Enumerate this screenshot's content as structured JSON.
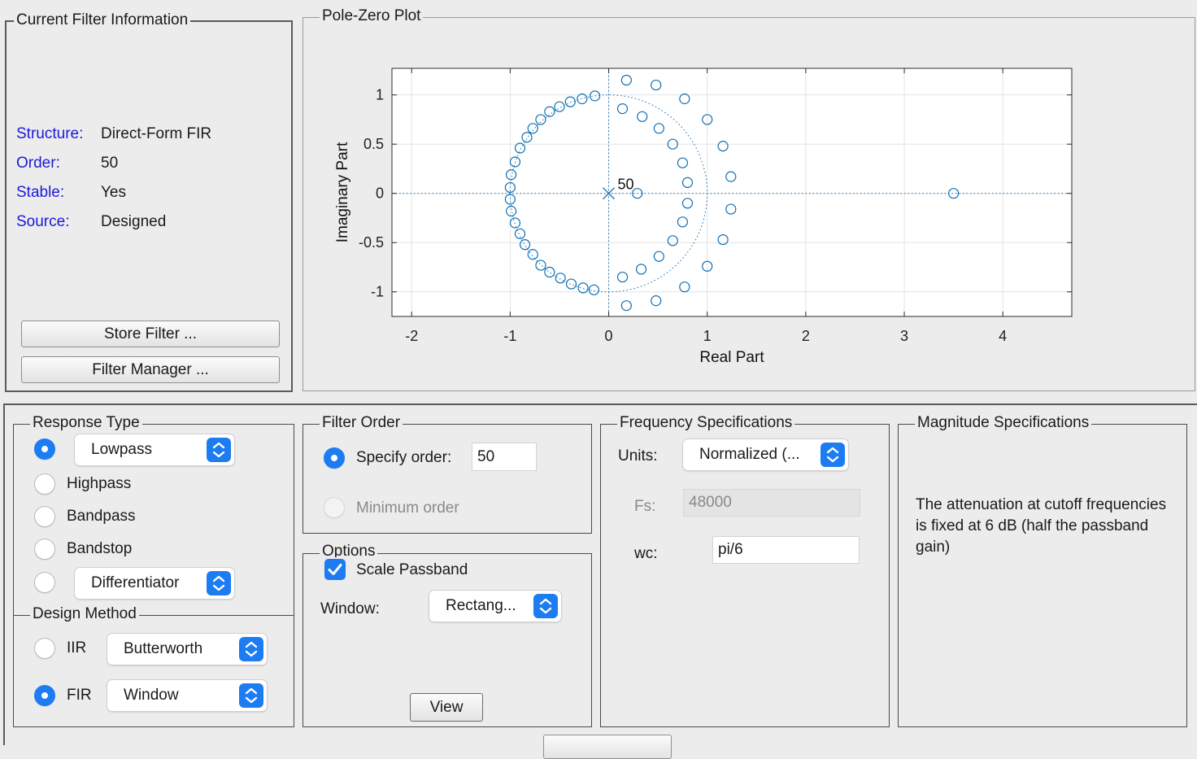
{
  "current_filter": {
    "title": "Current Filter Information",
    "structure_label": "Structure:",
    "structure_value": "Direct-Form FIR",
    "order_label": "Order:",
    "order_value": "50",
    "stable_label": "Stable:",
    "stable_value": "Yes",
    "source_label": "Source:",
    "source_value": "Designed",
    "store_button": "Store Filter ...",
    "manager_button": "Filter Manager ..."
  },
  "pole_zero": {
    "title": "Pole-Zero Plot",
    "pole_multiplicity_label": "50"
  },
  "chart_data": {
    "type": "scatter",
    "xlabel": "Real Part",
    "ylabel": "Imaginary Part",
    "xlim": [
      -2.2,
      4.7
    ],
    "ylim": [
      -1.25,
      1.27
    ],
    "xticks": [
      "-2",
      "-1",
      "0",
      "1",
      "2",
      "3",
      "4"
    ],
    "yticks": [
      "1",
      "0.5",
      "0",
      "-0.5",
      "-1"
    ],
    "xtick_values": [
      -2,
      -1,
      0,
      1,
      2,
      3,
      4
    ],
    "ytick_values": [
      1,
      0.5,
      0,
      -0.5,
      -1
    ],
    "grid": true,
    "unit_circle": true,
    "series": [
      {
        "marker": "x",
        "points": [
          [
            0,
            0
          ]
        ]
      },
      {
        "marker": "o",
        "points": [
          [
            -0.14,
            0.99
          ],
          [
            -0.27,
            0.96
          ],
          [
            -0.39,
            0.93
          ],
          [
            -0.5,
            0.88
          ],
          [
            -0.6,
            0.83
          ],
          [
            -0.69,
            0.75
          ],
          [
            -0.77,
            0.66
          ],
          [
            -0.83,
            0.57
          ],
          [
            -0.9,
            0.46
          ],
          [
            -0.95,
            0.32
          ],
          [
            -0.99,
            0.19
          ],
          [
            -1.0,
            0.06
          ],
          [
            -1.0,
            -0.06
          ],
          [
            -0.99,
            -0.18
          ],
          [
            -0.95,
            -0.3
          ],
          [
            -0.9,
            -0.41
          ],
          [
            -0.85,
            -0.52
          ],
          [
            -0.77,
            -0.62
          ],
          [
            -0.69,
            -0.73
          ],
          [
            -0.6,
            -0.8
          ],
          [
            -0.49,
            -0.86
          ],
          [
            -0.38,
            -0.92
          ],
          [
            -0.26,
            -0.96
          ],
          [
            -0.15,
            -0.98
          ],
          [
            0.18,
            1.15
          ],
          [
            0.48,
            1.1
          ],
          [
            0.77,
            0.96
          ],
          [
            1.0,
            0.75
          ],
          [
            1.16,
            0.48
          ],
          [
            1.24,
            0.17
          ],
          [
            0.14,
            0.86
          ],
          [
            0.34,
            0.78
          ],
          [
            0.51,
            0.66
          ],
          [
            0.65,
            0.5
          ],
          [
            0.75,
            0.31
          ],
          [
            0.8,
            0.11
          ],
          [
            0.29,
            0.0
          ],
          [
            0.14,
            -0.85
          ],
          [
            0.33,
            -0.77
          ],
          [
            0.51,
            -0.64
          ],
          [
            0.65,
            -0.48
          ],
          [
            0.75,
            -0.29
          ],
          [
            0.8,
            -0.1
          ],
          [
            0.18,
            -1.14
          ],
          [
            0.48,
            -1.09
          ],
          [
            0.77,
            -0.95
          ],
          [
            1.0,
            -0.74
          ],
          [
            1.16,
            -0.47
          ],
          [
            1.24,
            -0.16
          ],
          [
            3.5,
            0.0
          ]
        ]
      }
    ],
    "annotations": [
      "50"
    ],
    "color": "#0e6fb4"
  },
  "response_type": {
    "title": "Response Type",
    "lowpass_value": "Lowpass",
    "highpass_label": "Highpass",
    "bandpass_label": "Bandpass",
    "bandstop_label": "Bandstop",
    "other_value": "Differentiator",
    "selected": "Lowpass"
  },
  "design_method": {
    "title": "Design Method",
    "iir_label": "IIR",
    "iir_value": "Butterworth",
    "fir_label": "FIR",
    "fir_value": "Window",
    "selected": "FIR"
  },
  "filter_order": {
    "title": "Filter Order",
    "specify_label": "Specify order:",
    "specify_value": "50",
    "minimum_label": "Minimum order"
  },
  "options": {
    "title": "Options",
    "scale_passband_label": "Scale Passband",
    "scale_passband_checked": true,
    "window_label": "Window:",
    "window_value": "Rectang...",
    "view_button": "View"
  },
  "frequency_specs": {
    "title": "Frequency Specifications",
    "units_label": "Units:",
    "units_value": "Normalized (...",
    "fs_label": "Fs:",
    "fs_value": "48000",
    "wc_label": "wc:",
    "wc_value": "pi/6"
  },
  "magnitude_specs": {
    "title": "Magnitude Specifications",
    "note": "The attenuation at cutoff frequencies is fixed at 6 dB (half the passband gain)"
  },
  "colors": {
    "accent": "#1d7cf2",
    "label_blue": "#1a1adc",
    "plot_marker": "#0e6fb4"
  }
}
